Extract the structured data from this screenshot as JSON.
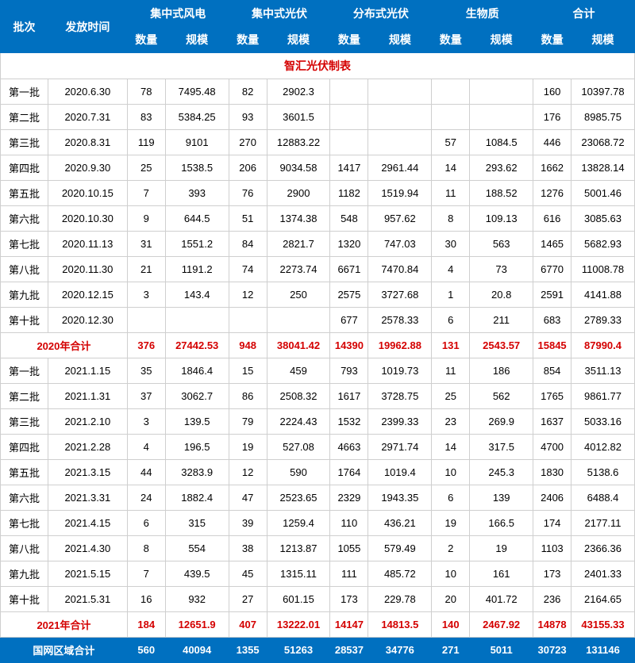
{
  "header": {
    "batch": "批次",
    "date": "发放时间",
    "groups": [
      {
        "name": "集中式风电",
        "qty": "数量",
        "scale": "规模"
      },
      {
        "name": "集中式光伏",
        "qty": "数量",
        "scale": "规模"
      },
      {
        "name": "分布式光伏",
        "qty": "数量",
        "scale": "规模"
      },
      {
        "name": "生物质",
        "qty": "数量",
        "scale": "规模"
      },
      {
        "name": "合计",
        "qty": "数量",
        "scale": "规模"
      }
    ]
  },
  "table_title": "智汇光伏制表",
  "rows_2020": [
    {
      "batch": "第一批",
      "date": "2020.6.30",
      "c": [
        "78",
        "7495.48",
        "82",
        "2902.3",
        "",
        "",
        "",
        "",
        "160",
        "10397.78"
      ]
    },
    {
      "batch": "第二批",
      "date": "2020.7.31",
      "c": [
        "83",
        "5384.25",
        "93",
        "3601.5",
        "",
        "",
        "",
        "",
        "176",
        "8985.75"
      ]
    },
    {
      "batch": "第三批",
      "date": "2020.8.31",
      "c": [
        "119",
        "9101",
        "270",
        "12883.22",
        "",
        "",
        "57",
        "1084.5",
        "446",
        "23068.72"
      ]
    },
    {
      "batch": "第四批",
      "date": "2020.9.30",
      "c": [
        "25",
        "1538.5",
        "206",
        "9034.58",
        "1417",
        "2961.44",
        "14",
        "293.62",
        "1662",
        "13828.14"
      ]
    },
    {
      "batch": "第五批",
      "date": "2020.10.15",
      "c": [
        "7",
        "393",
        "76",
        "2900",
        "1182",
        "1519.94",
        "11",
        "188.52",
        "1276",
        "5001.46"
      ]
    },
    {
      "batch": "第六批",
      "date": "2020.10.30",
      "c": [
        "9",
        "644.5",
        "51",
        "1374.38",
        "548",
        "957.62",
        "8",
        "109.13",
        "616",
        "3085.63"
      ]
    },
    {
      "batch": "第七批",
      "date": "2020.11.13",
      "c": [
        "31",
        "1551.2",
        "84",
        "2821.7",
        "1320",
        "747.03",
        "30",
        "563",
        "1465",
        "5682.93"
      ]
    },
    {
      "batch": "第八批",
      "date": "2020.11.30",
      "c": [
        "21",
        "1191.2",
        "74",
        "2273.74",
        "6671",
        "7470.84",
        "4",
        "73",
        "6770",
        "11008.78"
      ]
    },
    {
      "batch": "第九批",
      "date": "2020.12.15",
      "c": [
        "3",
        "143.4",
        "12",
        "250",
        "2575",
        "3727.68",
        "1",
        "20.8",
        "2591",
        "4141.88"
      ]
    },
    {
      "batch": "第十批",
      "date": "2020.12.30",
      "c": [
        "",
        "",
        "",
        "",
        "677",
        "2578.33",
        "6",
        "211",
        "683",
        "2789.33"
      ]
    }
  ],
  "subtotal_2020": {
    "label": "2020年合计",
    "c": [
      "376",
      "27442.53",
      "948",
      "38041.42",
      "14390",
      "19962.88",
      "131",
      "2543.57",
      "15845",
      "87990.4"
    ]
  },
  "rows_2021": [
    {
      "batch": "第一批",
      "date": "2021.1.15",
      "c": [
        "35",
        "1846.4",
        "15",
        "459",
        "793",
        "1019.73",
        "11",
        "186",
        "854",
        "3511.13"
      ]
    },
    {
      "batch": "第二批",
      "date": "2021.1.31",
      "c": [
        "37",
        "3062.7",
        "86",
        "2508.32",
        "1617",
        "3728.75",
        "25",
        "562",
        "1765",
        "9861.77"
      ]
    },
    {
      "batch": "第三批",
      "date": "2021.2.10",
      "c": [
        "3",
        "139.5",
        "79",
        "2224.43",
        "1532",
        "2399.33",
        "23",
        "269.9",
        "1637",
        "5033.16"
      ]
    },
    {
      "batch": "第四批",
      "date": "2021.2.28",
      "c": [
        "4",
        "196.5",
        "19",
        "527.08",
        "4663",
        "2971.74",
        "14",
        "317.5",
        "4700",
        "4012.82"
      ]
    },
    {
      "batch": "第五批",
      "date": "2021.3.15",
      "c": [
        "44",
        "3283.9",
        "12",
        "590",
        "1764",
        "1019.4",
        "10",
        "245.3",
        "1830",
        "5138.6"
      ]
    },
    {
      "batch": "第六批",
      "date": "2021.3.31",
      "c": [
        "24",
        "1882.4",
        "47",
        "2523.65",
        "2329",
        "1943.35",
        "6",
        "139",
        "2406",
        "6488.4"
      ]
    },
    {
      "batch": "第七批",
      "date": "2021.4.15",
      "c": [
        "6",
        "315",
        "39",
        "1259.4",
        "110",
        "436.21",
        "19",
        "166.5",
        "174",
        "2177.11"
      ]
    },
    {
      "batch": "第八批",
      "date": "2021.4.30",
      "c": [
        "8",
        "554",
        "38",
        "1213.87",
        "1055",
        "579.49",
        "2",
        "19",
        "1103",
        "2366.36"
      ]
    },
    {
      "batch": "第九批",
      "date": "2021.5.15",
      "c": [
        "7",
        "439.5",
        "45",
        "1315.11",
        "111",
        "485.72",
        "10",
        "161",
        "173",
        "2401.33"
      ]
    },
    {
      "batch": "第十批",
      "date": "2021.5.31",
      "c": [
        "16",
        "932",
        "27",
        "601.15",
        "173",
        "229.78",
        "20",
        "401.72",
        "236",
        "2164.65"
      ]
    }
  ],
  "subtotal_2021": {
    "label": "2021年合计",
    "c": [
      "184",
      "12651.9",
      "407",
      "13222.01",
      "14147",
      "14813.5",
      "140",
      "2467.92",
      "14878",
      "43155.33"
    ]
  },
  "grand_total": {
    "label": "国网区域合计",
    "c": [
      "560",
      "40094",
      "1355",
      "51263",
      "28537",
      "34776",
      "271",
      "5011",
      "30723",
      "131146"
    ]
  },
  "colors": {
    "header_bg": "#0070c0",
    "header_fg": "#ffffff",
    "subtotal_fg": "#d40000",
    "border": "#cfcfcf",
    "bg": "#ffffff"
  }
}
